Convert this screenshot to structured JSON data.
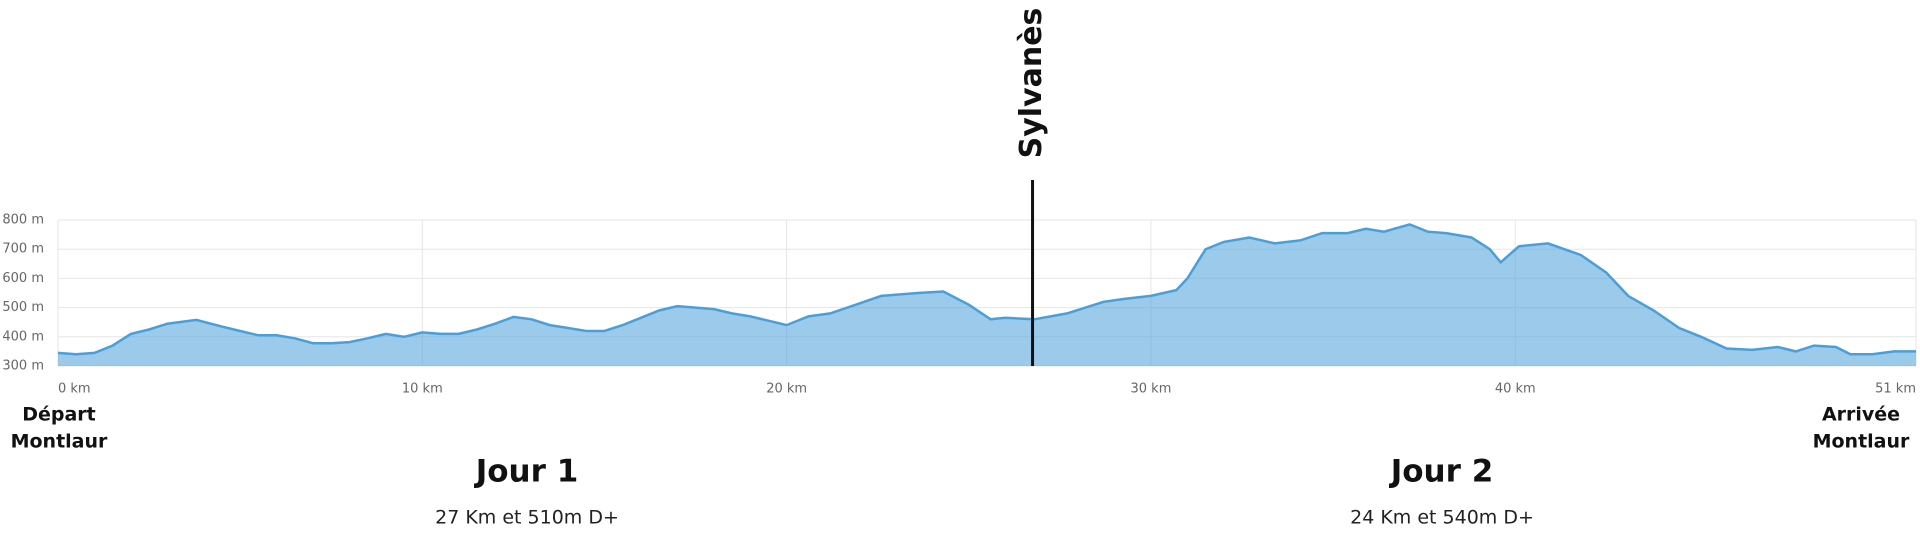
{
  "chart_data": {
    "type": "area",
    "x": [
      0,
      0.5,
      1,
      1.5,
      2,
      2.5,
      3,
      3.8,
      4.5,
      5,
      5.5,
      6,
      6.5,
      7,
      7.5,
      8,
      8.5,
      9,
      9.5,
      10,
      10.5,
      11,
      11.5,
      12,
      12.5,
      13,
      13.5,
      14,
      14.5,
      15,
      15.5,
      16,
      16.5,
      17,
      17.5,
      18,
      18.5,
      19,
      19.5,
      20,
      20.6,
      21.2,
      21.9,
      22.6,
      23.6,
      24.3,
      25,
      25.6,
      26,
      26.8,
      27.7,
      28.7,
      29.3,
      30,
      30.7,
      31,
      31.5,
      32,
      32.7,
      33.4,
      34.1,
      34.7,
      35.4,
      35.9,
      36.4,
      37.1,
      37.6,
      38.1,
      38.8,
      39.3,
      39.6,
      40.1,
      40.9,
      41.8,
      42.5,
      43.1,
      43.8,
      44.5,
      45.1,
      45.8,
      46.5,
      47.2,
      47.7,
      48.2,
      48.8,
      49.2,
      49.8,
      50.4,
      51
    ],
    "values": [
      345,
      340,
      345,
      370,
      410,
      425,
      445,
      458,
      435,
      420,
      405,
      405,
      395,
      378,
      378,
      382,
      395,
      410,
      400,
      415,
      410,
      410,
      425,
      445,
      468,
      460,
      440,
      430,
      420,
      420,
      440,
      465,
      490,
      505,
      500,
      495,
      480,
      470,
      455,
      440,
      470,
      480,
      510,
      540,
      550,
      555,
      510,
      460,
      465,
      460,
      480,
      520,
      530,
      540,
      560,
      600,
      700,
      725,
      740,
      720,
      730,
      755,
      755,
      770,
      760,
      785,
      760,
      755,
      740,
      700,
      655,
      710,
      720,
      680,
      620,
      540,
      490,
      430,
      400,
      360,
      355,
      365,
      350,
      370,
      365,
      340,
      340,
      350,
      350
    ],
    "color": "#4a9fd8",
    "xlim": [
      0,
      51
    ],
    "ylim": [
      300,
      800
    ],
    "xticks": [
      {
        "value": 0,
        "label": "0 km"
      },
      {
        "value": 10,
        "label": "10 km"
      },
      {
        "value": 20,
        "label": "20 km"
      },
      {
        "value": 30,
        "label": "30 km"
      },
      {
        "value": 40,
        "label": "40 km"
      },
      {
        "value": 51,
        "label": "51 km"
      }
    ],
    "yticks": [
      {
        "value": 300,
        "label": "300 m"
      },
      {
        "value": 400,
        "label": "400 m"
      },
      {
        "value": 500,
        "label": "500 m"
      },
      {
        "value": 600,
        "label": "600 m"
      },
      {
        "value": 700,
        "label": "700 m"
      },
      {
        "value": 800,
        "label": "800 m"
      }
    ],
    "grid": true,
    "marker": {
      "label": "Sylvanès",
      "x": 26.75
    },
    "start_label": [
      "Départ",
      "Montlaur"
    ],
    "end_label": [
      "Arrivée",
      "Montlaur"
    ],
    "days": [
      {
        "title": "Jour 1",
        "subtitle": "27 Km et 510m D+"
      },
      {
        "title": "Jour 2",
        "subtitle": "24 Km et 540m D+"
      }
    ]
  }
}
